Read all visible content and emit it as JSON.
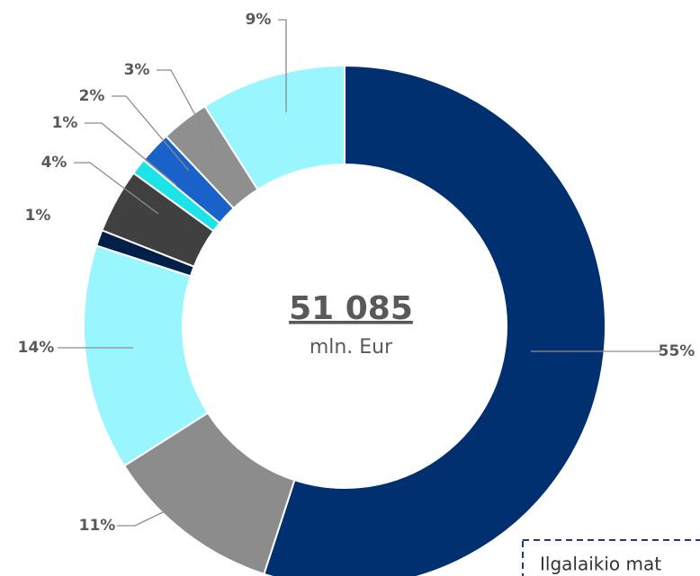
{
  "chart_data": {
    "type": "donut",
    "values": [
      55,
      11,
      14,
      1,
      4,
      1,
      2,
      3,
      9
    ],
    "value_labels": [
      "55%",
      "11%",
      "14%",
      "1%",
      "4%",
      "1%",
      "2%",
      "3%",
      "9%"
    ],
    "colors": [
      "#003070",
      "#8c8c8c",
      "#99f6ff",
      "#00204a",
      "#404040",
      "#1ce3e8",
      "#1862c9",
      "#8f8f8f",
      "#99f6ff"
    ],
    "center_value": "51 085",
    "center_unit": "mln. Eur",
    "annotation": "Ilgalaikio mat"
  }
}
